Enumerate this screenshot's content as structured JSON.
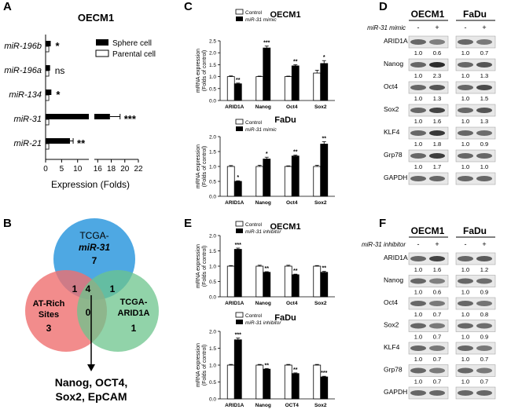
{
  "panel_labels": [
    "A",
    "B",
    "C",
    "D",
    "E",
    "F"
  ],
  "panel_a": {
    "title": "OECM1",
    "xlabel": "Expression (Folds)",
    "legend": [
      "Sphere cell",
      "Parental cell"
    ],
    "x_ticks": [
      "0",
      "5",
      "10",
      "16",
      "18",
      "20",
      "22"
    ],
    "rows": [
      {
        "label": "miR-196b",
        "sphere": 1.6,
        "parental": 1.0,
        "sig": "*"
      },
      {
        "label": "miR-196a",
        "sphere": 1.4,
        "parental": 1.0,
        "sig": "ns"
      },
      {
        "label": "miR-134",
        "sphere": 1.8,
        "parental": 1.0,
        "sig": "*"
      },
      {
        "label": "miR-31",
        "sphere": 17.8,
        "parental": 1.0,
        "sig": "***",
        "err": 1.5
      },
      {
        "label": "miR-21",
        "sphere": 7.6,
        "parental": 1.0,
        "sig": "**",
        "err": 1.0
      }
    ]
  },
  "panel_b": {
    "circles": [
      {
        "name": "TCGA-",
        "name2": "miR-31",
        "count": "7",
        "color": "#3b9fe0"
      },
      {
        "name": "AT-Rich",
        "name2": "Sites",
        "count": "3",
        "color": "#ef6f6f"
      },
      {
        "name": "TCGA-",
        "name2": "ARID1A",
        "count": "1",
        "color": "#6cc48c"
      }
    ],
    "overlaps": {
      "tm_at": "1",
      "tm_ar": "1",
      "at_ar": "0",
      "all": "4"
    },
    "result_line1": "Nanog, OCT4,",
    "result_line2": "Sox2, EpCAM"
  },
  "chart_data": [
    {
      "type": "bar",
      "panel": "C",
      "title": "OECM1",
      "ylabel": "mRNA expression (Folds of control)",
      "categories": [
        "ARID1A",
        "Nanog",
        "Oct4",
        "Sox2"
      ],
      "ylim": [
        0,
        2.5
      ],
      "y_ticks": [
        "0.0",
        "0.5",
        "1.0",
        "1.5",
        "2.0",
        "2.5"
      ],
      "series": [
        {
          "name": "Control",
          "values": [
            1.0,
            1.0,
            1.0,
            1.15
          ],
          "errors": [
            0.03,
            0.02,
            0.02,
            0.12
          ]
        },
        {
          "name": "miR-31 mimic",
          "values": [
            0.7,
            2.2,
            1.45,
            1.55
          ],
          "errors": [
            0.03,
            0.08,
            0.05,
            0.12
          ]
        }
      ],
      "sig": [
        "**",
        "***",
        "**",
        "*"
      ]
    },
    {
      "type": "bar",
      "panel": "C",
      "title": "FaDu",
      "ylabel": "mRNA expression (Folds of control)",
      "categories": [
        "ARID1A",
        "Nanog",
        "Oct4",
        "Sox2"
      ],
      "ylim": [
        0,
        2.0
      ],
      "y_ticks": [
        "0.0",
        "0.5",
        "1.0",
        "1.5",
        "2.0"
      ],
      "series": [
        {
          "name": "Control",
          "values": [
            1.0,
            1.0,
            1.0,
            1.0
          ],
          "errors": [
            0.03,
            0.04,
            0.02,
            0.04
          ]
        },
        {
          "name": "miR-31 mimic",
          "values": [
            0.5,
            1.25,
            1.35,
            1.75
          ],
          "errors": [
            0.02,
            0.06,
            0.03,
            0.08
          ]
        }
      ],
      "sig": [
        "*",
        "*",
        "**",
        "**"
      ]
    },
    {
      "type": "bar",
      "panel": "E",
      "title": "OECM1",
      "ylabel": "mRNA expression (Folds of control)",
      "categories": [
        "ARID1A",
        "Nanog",
        "Oct4",
        "Sox2"
      ],
      "ylim": [
        0,
        2.0
      ],
      "y_ticks": [
        "0.0",
        "0.5",
        "1.0",
        "1.5",
        "2.0"
      ],
      "series": [
        {
          "name": "Control",
          "values": [
            1.0,
            1.0,
            1.0,
            1.0
          ],
          "errors": [
            0.02,
            0.03,
            0.03,
            0.02
          ]
        },
        {
          "name": "miR-31 inhibitor",
          "values": [
            1.55,
            0.8,
            0.72,
            0.8
          ],
          "errors": [
            0.04,
            0.02,
            0.02,
            0.03
          ]
        }
      ],
      "sig": [
        "***",
        "**",
        "**",
        "**"
      ]
    },
    {
      "type": "bar",
      "panel": "E",
      "title": "FaDu",
      "ylabel": "mRNA expression (Folds of control)",
      "categories": [
        "ARID1A",
        "Nanog",
        "OCT4",
        "Sox2"
      ],
      "ylim": [
        0,
        2.0
      ],
      "y_ticks": [
        "0.0",
        "0.5",
        "1.0",
        "1.5",
        "2.0"
      ],
      "series": [
        {
          "name": "Control",
          "values": [
            1.0,
            1.0,
            1.0,
            1.0
          ],
          "errors": [
            0.02,
            0.02,
            0.02,
            0.02
          ]
        },
        {
          "name": "miR-31 inhibitor",
          "values": [
            1.75,
            0.88,
            0.75,
            0.65
          ],
          "errors": [
            0.05,
            0.02,
            0.02,
            0.02
          ]
        }
      ],
      "sig": [
        "***",
        "**",
        "**",
        "***"
      ]
    }
  ],
  "panel_d": {
    "treatment": "miR-31 mimic",
    "cell_lines": [
      "OECM1",
      "FaDu"
    ],
    "signs": [
      "-",
      "+",
      "-",
      "+"
    ],
    "rows": [
      {
        "name": "ARID1A",
        "vals": [
          "1.0",
          "0.6",
          "1.0",
          "0.7"
        ]
      },
      {
        "name": "Nanog",
        "vals": [
          "1.0",
          "2.3",
          "1.0",
          "1.3"
        ]
      },
      {
        "name": "Oct4",
        "vals": [
          "1.0",
          "1.3",
          "1.0",
          "1.5"
        ]
      },
      {
        "name": "Sox2",
        "vals": [
          "1.0",
          "1.6",
          "1.0",
          "1.3"
        ]
      },
      {
        "name": "KLF4",
        "vals": [
          "1.0",
          "1.8",
          "1.0",
          "0.9"
        ]
      },
      {
        "name": "Grp78",
        "vals": [
          "1.0",
          "1.7",
          "1.0",
          "1.0"
        ]
      },
      {
        "name": "GAPDH",
        "vals": null
      }
    ]
  },
  "panel_f": {
    "treatment": "miR-31 inhibitor",
    "cell_lines": [
      "OECM1",
      "FaDu"
    ],
    "signs": [
      "-",
      "+",
      "-",
      "+"
    ],
    "rows": [
      {
        "name": "ARID1A",
        "vals": [
          "1.0",
          "1.6",
          "1.0",
          "1.2"
        ]
      },
      {
        "name": "Nanog",
        "vals": [
          "1.0",
          "0.6",
          "1.0",
          "0.9"
        ]
      },
      {
        "name": "Oct4",
        "vals": [
          "1.0",
          "0.7",
          "1.0",
          "0.8"
        ]
      },
      {
        "name": "Sox2",
        "vals": [
          "1.0",
          "0.7",
          "1.0",
          "0.9"
        ]
      },
      {
        "name": "KLF4",
        "vals": [
          "1.0",
          "0.7",
          "1.0",
          "0.7"
        ]
      },
      {
        "name": "Grp78",
        "vals": [
          "1.0",
          "0.7",
          "1.0",
          "0.7"
        ]
      },
      {
        "name": "GAPDH",
        "vals": null
      }
    ]
  }
}
